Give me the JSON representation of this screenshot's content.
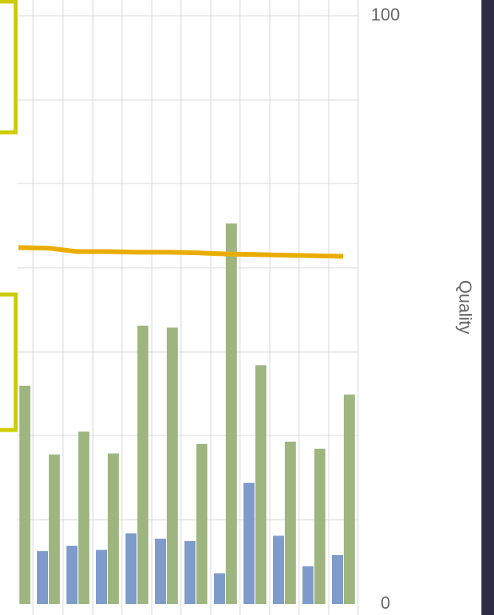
{
  "chart_data": {
    "type": "bar_line",
    "y_label": "Quality",
    "categories": [
      null,
      null,
      null,
      null,
      null,
      null,
      null,
      null,
      null,
      null,
      null,
      null
    ],
    "series": [
      {
        "type": "bar",
        "color": "#7f9bcb",
        "values": [
          null,
          9.0,
          9.9,
          9.2,
          12.0,
          11.1,
          10.7,
          5.2,
          20.6,
          11.6,
          6.4,
          8.3
        ]
      },
      {
        "type": "bar",
        "color": "#9fb580",
        "values": [
          37.1,
          25.4,
          29.3,
          25.6,
          47.3,
          47.0,
          27.2,
          64.7,
          40.6,
          27.6,
          26.4,
          35.6
        ]
      },
      {
        "type": "line",
        "color": "#e9ad00",
        "values": [
          60.6,
          60.5,
          59.9,
          59.9,
          59.8,
          59.8,
          59.7,
          59.5,
          59.4,
          59.3,
          59.2,
          59.1
        ]
      }
    ],
    "ylim": [
      0,
      100
    ],
    "yticks": [
      0,
      100
    ]
  }
}
